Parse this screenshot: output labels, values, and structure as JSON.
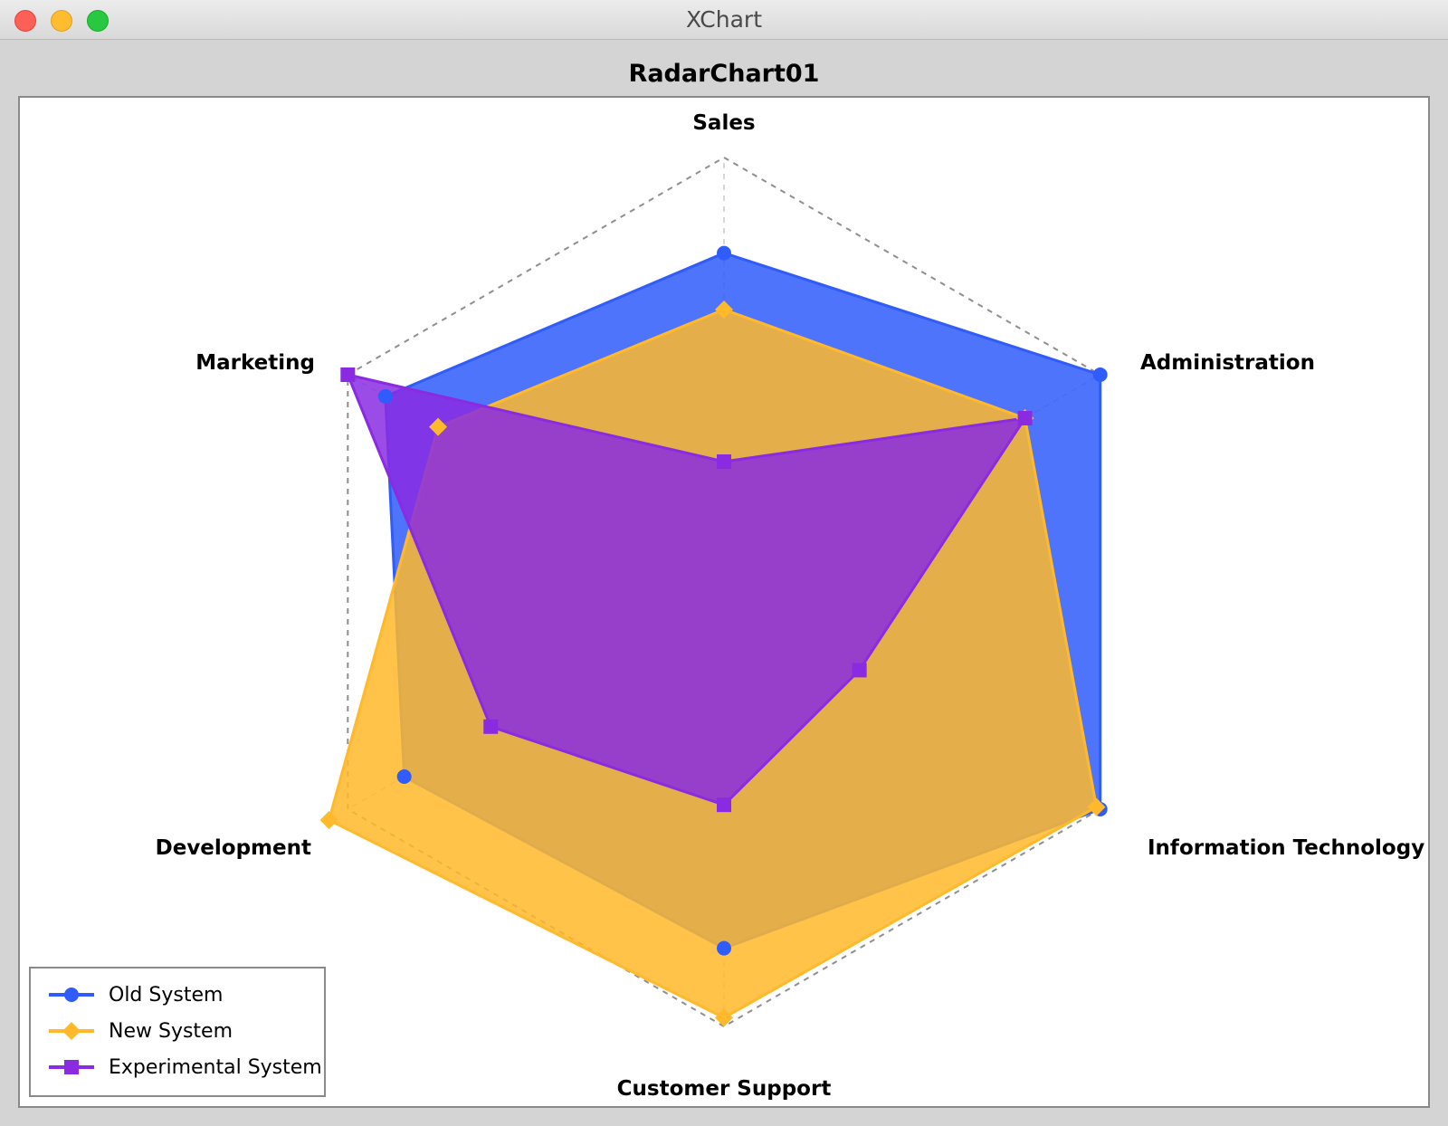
{
  "window": {
    "title": "XChart"
  },
  "chart_data": {
    "type": "radar",
    "title": "RadarChart01",
    "categories": [
      "Sales",
      "Administration",
      "Information Technology",
      "Customer Support",
      "Development",
      "Marketing"
    ],
    "range": [
      0,
      1
    ],
    "series": [
      {
        "name": "Old System",
        "color": "#2f5cfa",
        "marker": "circle",
        "values": [
          0.78,
          1.0,
          1.0,
          0.82,
          0.85,
          0.9
        ]
      },
      {
        "name": "New System",
        "color": "#ffb92a",
        "marker": "diamond",
        "values": [
          0.65,
          0.8,
          0.99,
          0.98,
          1.05,
          0.76
        ]
      },
      {
        "name": "Experimental System",
        "color": "#8a2be2",
        "marker": "square",
        "values": [
          0.3,
          0.8,
          0.36,
          0.49,
          0.62,
          1.0
        ]
      }
    ],
    "grid": true,
    "legend_position": "bottom-left"
  }
}
